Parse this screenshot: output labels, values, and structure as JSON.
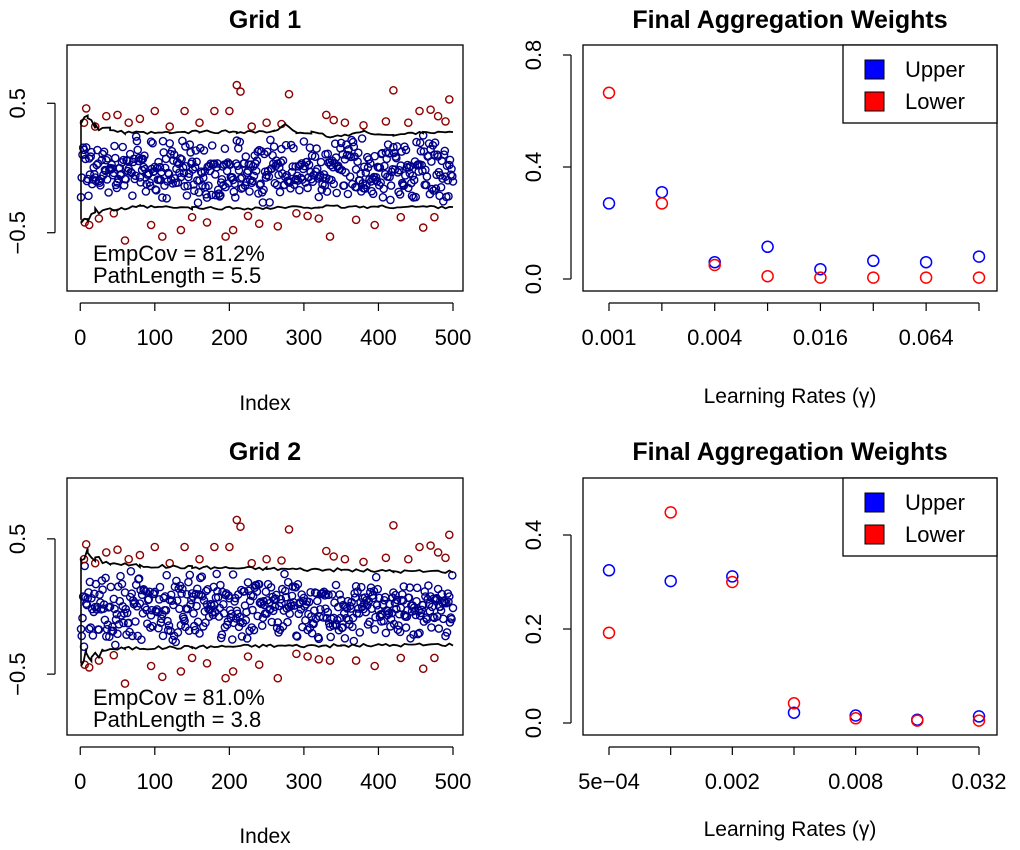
{
  "chart_data": [
    {
      "type": "scatter",
      "title": "Grid 1",
      "xlabel": "Index",
      "ylabel": "",
      "xlim": [
        1,
        500
      ],
      "ylim": [
        -0.95,
        0.95
      ],
      "xticks": [
        0,
        100,
        200,
        300,
        400,
        500
      ],
      "yticks": [
        -0.5,
        0.5
      ],
      "ytick_labels": [
        "−0.5",
        "0.5"
      ],
      "annotations": [
        "EmpCov = 81.2%",
        "PathLength = 5.5"
      ],
      "colors": {
        "covered": "#00008b",
        "uncovered": "#8b0000",
        "band": "#000000"
      },
      "band_upper": [
        [
          1,
          0.37
        ],
        [
          10,
          0.42
        ],
        [
          20,
          0.32
        ],
        [
          40,
          0.3
        ],
        [
          60,
          0.27
        ],
        [
          120,
          0.27
        ],
        [
          160,
          0.28
        ],
        [
          210,
          0.28
        ],
        [
          260,
          0.28
        ],
        [
          275,
          0.33
        ],
        [
          290,
          0.28
        ],
        [
          310,
          0.27
        ],
        [
          340,
          0.24
        ],
        [
          380,
          0.28
        ],
        [
          420,
          0.25
        ],
        [
          460,
          0.28
        ],
        [
          500,
          0.27
        ]
      ],
      "band_lower": [
        [
          1,
          -0.4
        ],
        [
          10,
          -0.38
        ],
        [
          20,
          -0.33
        ],
        [
          50,
          -0.32
        ],
        [
          80,
          -0.3
        ],
        [
          150,
          -0.31
        ],
        [
          250,
          -0.31
        ],
        [
          320,
          -0.3
        ],
        [
          400,
          -0.3
        ],
        [
          500,
          -0.3
        ]
      ],
      "uncovered_points": [
        [
          5,
          0.35
        ],
        [
          6,
          -0.42
        ],
        [
          8,
          0.46
        ],
        [
          12,
          -0.44
        ],
        [
          20,
          0.32
        ],
        [
          25,
          -0.39
        ],
        [
          35,
          0.4
        ],
        [
          45,
          -0.35
        ],
        [
          50,
          0.41
        ],
        [
          60,
          -0.56
        ],
        [
          65,
          0.35
        ],
        [
          80,
          0.38
        ],
        [
          95,
          -0.44
        ],
        [
          100,
          0.44
        ],
        [
          110,
          -0.53
        ],
        [
          120,
          0.32
        ],
        [
          135,
          -0.48
        ],
        [
          140,
          0.44
        ],
        [
          150,
          -0.38
        ],
        [
          160,
          0.35
        ],
        [
          170,
          -0.42
        ],
        [
          180,
          0.44
        ],
        [
          195,
          -0.53
        ],
        [
          200,
          0.44
        ],
        [
          205,
          -0.48
        ],
        [
          210,
          0.64
        ],
        [
          215,
          0.59
        ],
        [
          225,
          -0.37
        ],
        [
          230,
          0.32
        ],
        [
          240,
          -0.43
        ],
        [
          250,
          0.35
        ],
        [
          265,
          -0.45
        ],
        [
          270,
          0.34
        ],
        [
          280,
          0.57
        ],
        [
          290,
          -0.35
        ],
        [
          305,
          -0.37
        ],
        [
          320,
          -0.39
        ],
        [
          330,
          0.41
        ],
        [
          335,
          -0.53
        ],
        [
          340,
          0.37
        ],
        [
          355,
          0.35
        ],
        [
          370,
          -0.4
        ],
        [
          380,
          0.33
        ],
        [
          395,
          -0.44
        ],
        [
          410,
          0.36
        ],
        [
          420,
          0.6
        ],
        [
          430,
          -0.38
        ],
        [
          440,
          0.35
        ],
        [
          455,
          0.44
        ],
        [
          460,
          -0.46
        ],
        [
          470,
          0.45
        ],
        [
          475,
          -0.38
        ],
        [
          480,
          0.4
        ],
        [
          490,
          0.36
        ],
        [
          495,
          0.53
        ]
      ]
    },
    {
      "type": "scatter",
      "title": "Final Aggregation Weights",
      "xlabel": "Learning Rates (γ)",
      "ylabel": "",
      "x": [
        0.001,
        0.002,
        0.004,
        0.008,
        0.016,
        0.032,
        0.064,
        0.128
      ],
      "xticks": [
        0.001,
        0.004,
        0.016,
        0.064
      ],
      "xtick_labels": [
        "0.001",
        "0.004",
        "0.016",
        "0.064"
      ],
      "xscale": "log",
      "ylim": [
        0,
        0.8
      ],
      "yticks": [
        0.0,
        0.4,
        0.8
      ],
      "ytick_labels": [
        "0.0",
        "0.4",
        "0.8"
      ],
      "legend": {
        "position": "top-right",
        "entries": [
          "Upper",
          "Lower"
        ]
      },
      "series": [
        {
          "name": "Upper",
          "color": "#0000ff",
          "values": [
            0.27,
            0.31,
            0.06,
            0.115,
            0.035,
            0.065,
            0.06,
            0.08
          ]
        },
        {
          "name": "Lower",
          "color": "#ff0000",
          "values": [
            0.665,
            0.27,
            0.05,
            0.01,
            0.005,
            0.005,
            0.005,
            0.005
          ]
        }
      ]
    },
    {
      "type": "scatter",
      "title": "Grid 2",
      "xlabel": "Index",
      "ylabel": "",
      "xlim": [
        1,
        500
      ],
      "ylim": [
        -0.95,
        0.95
      ],
      "xticks": [
        0,
        100,
        200,
        300,
        400,
        500
      ],
      "yticks": [
        -0.5,
        0.5
      ],
      "ytick_labels": [
        "−0.5",
        "0.5"
      ],
      "annotations": [
        "EmpCov = 81.0%",
        "PathLength = 3.8"
      ],
      "colors": {
        "covered": "#00008b",
        "uncovered": "#8b0000",
        "band": "#000000"
      },
      "band_upper": [
        [
          1,
          0.36
        ],
        [
          10,
          0.4
        ],
        [
          20,
          0.34
        ],
        [
          40,
          0.32
        ],
        [
          80,
          0.3
        ],
        [
          150,
          0.29
        ],
        [
          250,
          0.28
        ],
        [
          350,
          0.27
        ],
        [
          420,
          0.26
        ],
        [
          500,
          0.26
        ]
      ],
      "band_lower": [
        [
          1,
          -0.42
        ],
        [
          8,
          -0.34
        ],
        [
          15,
          -0.4
        ],
        [
          30,
          -0.32
        ],
        [
          60,
          -0.31
        ],
        [
          150,
          -0.3
        ],
        [
          250,
          -0.29
        ],
        [
          350,
          -0.29
        ],
        [
          500,
          -0.28
        ]
      ],
      "uncovered_points": [
        [
          5,
          0.35
        ],
        [
          6,
          -0.43
        ],
        [
          8,
          0.46
        ],
        [
          12,
          -0.45
        ],
        [
          20,
          0.32
        ],
        [
          25,
          -0.4
        ],
        [
          35,
          0.4
        ],
        [
          45,
          -0.36
        ],
        [
          50,
          0.42
        ],
        [
          60,
          -0.57
        ],
        [
          65,
          0.35
        ],
        [
          80,
          0.38
        ],
        [
          95,
          -0.44
        ],
        [
          100,
          0.44
        ],
        [
          110,
          -0.52
        ],
        [
          120,
          0.32
        ],
        [
          135,
          -0.48
        ],
        [
          140,
          0.44
        ],
        [
          150,
          -0.38
        ],
        [
          160,
          0.35
        ],
        [
          170,
          -0.42
        ],
        [
          180,
          0.44
        ],
        [
          195,
          -0.53
        ],
        [
          200,
          0.44
        ],
        [
          205,
          -0.48
        ],
        [
          210,
          0.64
        ],
        [
          215,
          0.59
        ],
        [
          225,
          -0.37
        ],
        [
          230,
          0.32
        ],
        [
          240,
          -0.43
        ],
        [
          250,
          0.35
        ],
        [
          265,
          -0.53
        ],
        [
          270,
          0.34
        ],
        [
          280,
          0.57
        ],
        [
          290,
          -0.35
        ],
        [
          305,
          -0.37
        ],
        [
          320,
          -0.39
        ],
        [
          330,
          0.41
        ],
        [
          335,
          -0.4
        ],
        [
          340,
          0.37
        ],
        [
          355,
          0.35
        ],
        [
          370,
          -0.4
        ],
        [
          380,
          0.33
        ],
        [
          395,
          -0.44
        ],
        [
          410,
          0.36
        ],
        [
          420,
          0.6
        ],
        [
          430,
          -0.38
        ],
        [
          440,
          0.35
        ],
        [
          455,
          0.44
        ],
        [
          460,
          -0.46
        ],
        [
          470,
          0.45
        ],
        [
          475,
          -0.38
        ],
        [
          480,
          0.4
        ],
        [
          490,
          0.36
        ],
        [
          495,
          0.53
        ]
      ]
    },
    {
      "type": "scatter",
      "title": "Final Aggregation Weights",
      "xlabel": "Learning Rates (γ)",
      "ylabel": "",
      "x": [
        0.0005,
        0.001,
        0.002,
        0.004,
        0.008,
        0.016,
        0.032
      ],
      "xticks": [
        0.0005,
        0.002,
        0.008,
        0.032
      ],
      "xtick_labels": [
        "5e−04",
        "0.002",
        "0.008",
        "0.032"
      ],
      "xscale": "log",
      "ylim": [
        0,
        0.5
      ],
      "yticks": [
        0.0,
        0.2,
        0.4
      ],
      "ytick_labels": [
        "0.0",
        "0.2",
        "0.4"
      ],
      "legend": {
        "position": "top-right",
        "entries": [
          "Upper",
          "Lower"
        ]
      },
      "series": [
        {
          "name": "Upper",
          "color": "#0000ff",
          "values": [
            0.325,
            0.302,
            0.312,
            0.022,
            0.016,
            0.007,
            0.014
          ]
        },
        {
          "name": "Lower",
          "color": "#ff0000",
          "values": [
            0.192,
            0.448,
            0.3,
            0.042,
            0.01,
            0.005,
            0.005
          ]
        }
      ]
    }
  ]
}
